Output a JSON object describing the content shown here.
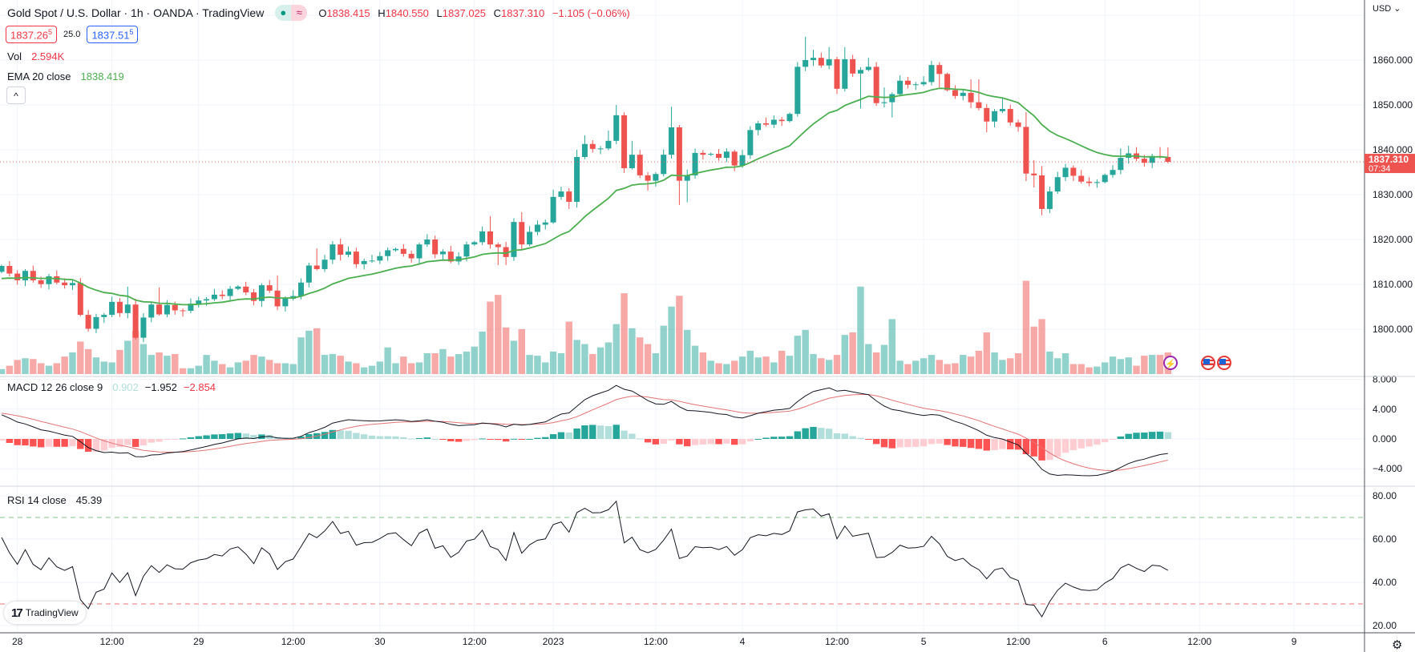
{
  "header": {
    "title": "Gold Spot / U.S. Dollar · 1h · OANDA · TradingView",
    "pill_a": "●",
    "pill_b": "≈",
    "o_label": "O",
    "o": "1838.415",
    "h_label": "H",
    "h": "1840.550",
    "l_label": "L",
    "l": "1837.025",
    "c_label": "C",
    "c": "1837.310",
    "change": "−1.105 (−0.06%)"
  },
  "trade": {
    "sell": "1837.26",
    "sell_sup": "5",
    "spread": "25.0",
    "buy": "1837.51",
    "buy_sup": "5"
  },
  "volume_legend": {
    "label": "Vol",
    "value": "2.594K"
  },
  "ema_legend": {
    "label": "EMA 20 close",
    "value": "1838.419"
  },
  "macd_legend": {
    "label": "MACD 12 26 close 9",
    "hist": "0.902",
    "macd": "−1.952",
    "signal": "−2.854"
  },
  "rsi_legend": {
    "label": "RSI 14 close",
    "value": "45.39"
  },
  "collapse_icon": "^",
  "currency": "USD",
  "last_price": {
    "price": "1837.310",
    "countdown": "07:34"
  },
  "logo": {
    "mark": "17",
    "text": "TradingView"
  },
  "icons": {
    "bolt": "⚡",
    "gear": "⚙"
  },
  "colors": {
    "up": "#26a69a",
    "down": "#ef5350",
    "ema": "#4caf50",
    "macd": "#131722",
    "signal": "#e57373",
    "rsi": "#131722"
  },
  "chart_data": {
    "type": "candlestick",
    "symbol": "XAUUSD 1h",
    "first_open": 1812.8,
    "closes": [
      1814.1,
      1812.4,
      1810.9,
      1813.0,
      1810.9,
      1810.05,
      1811.8,
      1810.4,
      1809.8,
      1810.3,
      1803.2,
      1800.1,
      1802.7,
      1803.2,
      1806.1,
      1803.6,
      1805.5,
      1798.1,
      1802.6,
      1805.5,
      1803.3,
      1805.4,
      1804.2,
      1804.1,
      1805.7,
      1806.4,
      1806.7,
      1807.7,
      1807.4,
      1809.0,
      1809.5,
      1808.2,
      1806.3,
      1809.8,
      1808.6,
      1805.1,
      1806.8,
      1807.4,
      1810.4,
      1814.2,
      1813.4,
      1815.5,
      1818.9,
      1816.6,
      1817.3,
      1814.5,
      1815.2,
      1815.3,
      1816.3,
      1817.6,
      1817.9,
      1816.8,
      1815.8,
      1818.9,
      1820.0,
      1816.7,
      1817.3,
      1815.1,
      1816.2,
      1818.9,
      1819.4,
      1821.8,
      1818.9,
      1818.3,
      1816.1,
      1823.9,
      1818.9,
      1821.7,
      1823.3,
      1823.8,
      1829.5,
      1830.7,
      1828.4,
      1838.4,
      1841.3,
      1840.2,
      1840.3,
      1842.0,
      1847.7,
      1835.9,
      1838.9,
      1834.3,
      1833.1,
      1834.6,
      1838.9,
      1845.0,
      1833.1,
      1834.3,
      1839.3,
      1838.9,
      1839.1,
      1838.2,
      1839.6,
      1836.5,
      1838.8,
      1844.4,
      1845.9,
      1845.6,
      1846.7,
      1846.4,
      1848.0,
      1858.5,
      1860.0,
      1860.5,
      1858.8,
      1860.2,
      1853.6,
      1860.2,
      1857.0,
      1857.8,
      1858.5,
      1850.4,
      1850.6,
      1852.4,
      1855.4,
      1854.5,
      1854.6,
      1855.1,
      1858.9,
      1856.9,
      1853.3,
      1852.0,
      1852.7,
      1850.6,
      1849.3,
      1846.3,
      1848.6,
      1849.1,
      1846.1,
      1845.1,
      1834.7,
      1834.3,
      1826.8,
      1830.7,
      1833.9,
      1836.0,
      1834.2,
      1832.9,
      1832.6,
      1832.8,
      1834.4,
      1835.5,
      1838.2,
      1839.2,
      1838.0,
      1837.1,
      1838.6,
      1838.4,
      1837.31
    ],
    "wick_overrides": {
      "10": [
        1811.4,
        null
      ],
      "16": [
        1809.5,
        null
      ],
      "18": [
        null,
        1797.1
      ],
      "20": [
        1809.3,
        null
      ],
      "35": [
        1812.0,
        null
      ],
      "40": [
        1818.0,
        null
      ],
      "43": [
        1820.2,
        null
      ],
      "62": [
        1825.2,
        null
      ],
      "63": [
        null,
        1814.3
      ],
      "64": [
        null,
        1814.3
      ],
      "66": [
        1826.1,
        null
      ],
      "70": [
        1831.1,
        null
      ],
      "72": [
        null,
        1826.8
      ],
      "73": [
        1840.0,
        null
      ],
      "74": [
        1843.2,
        null
      ],
      "77": [
        1844.3,
        null
      ],
      "78": [
        1850.0,
        null
      ],
      "80": [
        1842.0,
        null
      ],
      "82": [
        null,
        1830.9
      ],
      "85": [
        1849.6,
        null
      ],
      "86": [
        null,
        1827.7
      ],
      "87": [
        null,
        1828.3
      ],
      "102": [
        1865.2,
        null
      ],
      "103": [
        1862.3,
        null
      ],
      "105": [
        1862.9,
        null
      ],
      "107": [
        1862.9,
        1853.0
      ],
      "109": [
        null,
        1849.2
      ],
      "110": [
        1860.5,
        null
      ],
      "112": [
        1853.9,
        null
      ],
      "113": [
        null,
        1847.2
      ],
      "119": [
        null,
        1853.9
      ],
      "123": [
        1855.7,
        null
      ],
      "124": [
        1855.7,
        null
      ],
      "125": [
        null,
        1843.9
      ],
      "126": [
        null,
        1845.0
      ],
      "127": [
        1851.4,
        null
      ],
      "130": [
        1848.4,
        1833.0
      ],
      "131": [
        1837.7,
        1831.6
      ],
      "132": [
        1836.4,
        1825.4
      ],
      "133": [
        1831.8,
        1825.9
      ],
      "142": [
        1840.3,
        null
      ],
      "143": [
        1840.9,
        null
      ],
      "144": [
        1840.6,
        null
      ],
      "147": [
        1840.6,
        null
      ],
      "148": [
        1840.55,
        1837.025
      ]
    },
    "volumes_k": [
      0.6,
      1.0,
      1.7,
      1.9,
      1.8,
      1.3,
      1.0,
      1.3,
      2.1,
      2.6,
      3.9,
      3.0,
      2.0,
      1.5,
      1.4,
      2.9,
      4.0,
      5.2,
      3.6,
      2.3,
      2.6,
      2.2,
      2.4,
      0.7,
      0.7,
      1.0,
      2.3,
      1.6,
      1.2,
      0.8,
      1.4,
      1.6,
      2.3,
      2.1,
      1.7,
      1.3,
      1.3,
      1.2,
      4.4,
      5.2,
      5.5,
      2.3,
      2.4,
      2.2,
      1.5,
      1.3,
      0.8,
      1.0,
      1.5,
      3.2,
      1.3,
      2.1,
      1.3,
      1.4,
      2.5,
      2.5,
      3.0,
      2.1,
      2.4,
      2.7,
      3.3,
      5.1,
      8.7,
      9.5,
      5.6,
      4.0,
      5.4,
      2.3,
      2.2,
      1.4,
      2.7,
      2.5,
      6.3,
      4.1,
      3.6,
      2.4,
      3.2,
      3.8,
      6.0,
      9.7,
      5.5,
      4.4,
      3.6,
      2.5,
      5.8,
      8.1,
      9.4,
      5.3,
      3.4,
      2.6,
      1.6,
      1.3,
      1.2,
      1.6,
      2.1,
      2.8,
      2.0,
      2.1,
      1.4,
      2.8,
      2.2,
      4.6,
      5.3,
      2.4,
      1.9,
      1.7,
      2.3,
      4.7,
      5.0,
      10.5,
      3.6,
      2.6,
      3.5,
      6.6,
      1.6,
      1.2,
      1.6,
      1.9,
      2.3,
      1.7,
      1.2,
      1.3,
      2.3,
      2.1,
      2.8,
      5.0,
      2.6,
      1.7,
      1.9,
      2.5,
      11.2,
      5.7,
      6.6,
      2.7,
      1.9,
      2.5,
      1.2,
      1.2,
      0.8,
      0.9,
      1.4,
      2.1,
      1.8,
      2.0,
      1.0,
      2.2,
      2.3,
      2.3,
      2.594
    ],
    "indicator_seed": {
      "ema20": 1811.0,
      "ema12_offset": 1.2,
      "ema26_offset": -2.4,
      "signal": 3.5,
      "rsi_avg_gain": 0.55,
      "rsi_avg_loss": 0.42
    },
    "price_axis": {
      "ticks": [
        "1860.000",
        "1850.000",
        "1840.000",
        "1830.000",
        "1820.000",
        "1810.000",
        "1800.000"
      ],
      "values": [
        1860,
        1850,
        1840,
        1830,
        1820,
        1810,
        1800
      ]
    },
    "macd_axis": {
      "ticks": [
        "8.000",
        "4.000",
        "0.000",
        "−4.000"
      ],
      "values": [
        8,
        4,
        0,
        -4
      ]
    },
    "rsi_axis": {
      "ticks": [
        "80.00",
        "60.00",
        "40.00",
        "20.00"
      ],
      "values": [
        80,
        60,
        40,
        20
      ],
      "bands": [
        70,
        30
      ]
    },
    "time_axis": [
      {
        "label": "28",
        "bar": 2
      },
      {
        "label": "12:00",
        "bar": 14
      },
      {
        "label": "29",
        "bar": 25
      },
      {
        "label": "12:00",
        "bar": 37
      },
      {
        "label": "30",
        "bar": 48
      },
      {
        "label": "12:00",
        "bar": 60
      },
      {
        "label": "2023",
        "bar": 70
      },
      {
        "label": "12:00",
        "bar": 83
      },
      {
        "label": "4",
        "bar": 94
      },
      {
        "label": "12:00",
        "bar": 106
      },
      {
        "label": "5",
        "bar": 117
      },
      {
        "label": "12:00",
        "bar": 129
      },
      {
        "label": "6",
        "bar": 140
      },
      {
        "label": "12:00",
        "bar": 152
      },
      {
        "label": "9",
        "bar": 164
      }
    ],
    "last_close": 1837.31
  }
}
